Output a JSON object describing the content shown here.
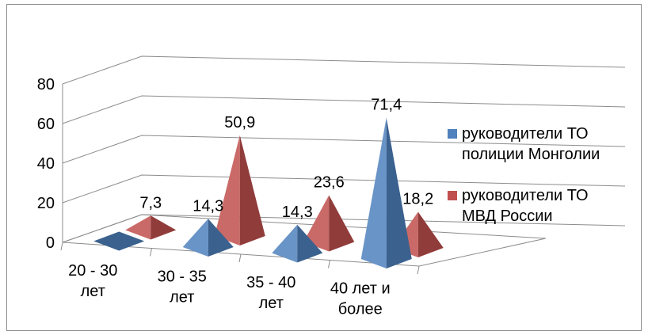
{
  "chart_data": {
    "type": "bar",
    "shape": "pyramid",
    "view": "3d",
    "categories": [
      "20 - 30 лет",
      "30 - 35 лет",
      "35 - 40 лет",
      "40 лет и более"
    ],
    "category_lines": [
      [
        "20 - 30",
        "лет"
      ],
      [
        "30 - 35",
        "лет"
      ],
      [
        "35 - 40",
        "лет"
      ],
      [
        "40 лет и",
        "более"
      ]
    ],
    "series": [
      {
        "name": "руководители ТО полиции Монголии",
        "legend_lines": [
          "руководители ТО",
          "полиции Монголии"
        ],
        "color": "#4F81BD",
        "values": [
          0,
          14.3,
          14.3,
          71.4
        ],
        "labels": [
          "",
          "14,3",
          "14,3",
          "71,4"
        ]
      },
      {
        "name": "руководители ТО МВД России",
        "legend_lines": [
          "руководители ТО",
          "МВД России"
        ],
        "color": "#C0504D",
        "values": [
          7.3,
          50.9,
          23.6,
          18.2
        ],
        "labels": [
          "7,3",
          "50,9",
          "23,6",
          "18,2"
        ]
      }
    ],
    "ylim": [
      0,
      80
    ],
    "yticks": [
      0,
      20,
      40,
      60,
      80
    ],
    "grid": true,
    "legend_position": "right"
  }
}
